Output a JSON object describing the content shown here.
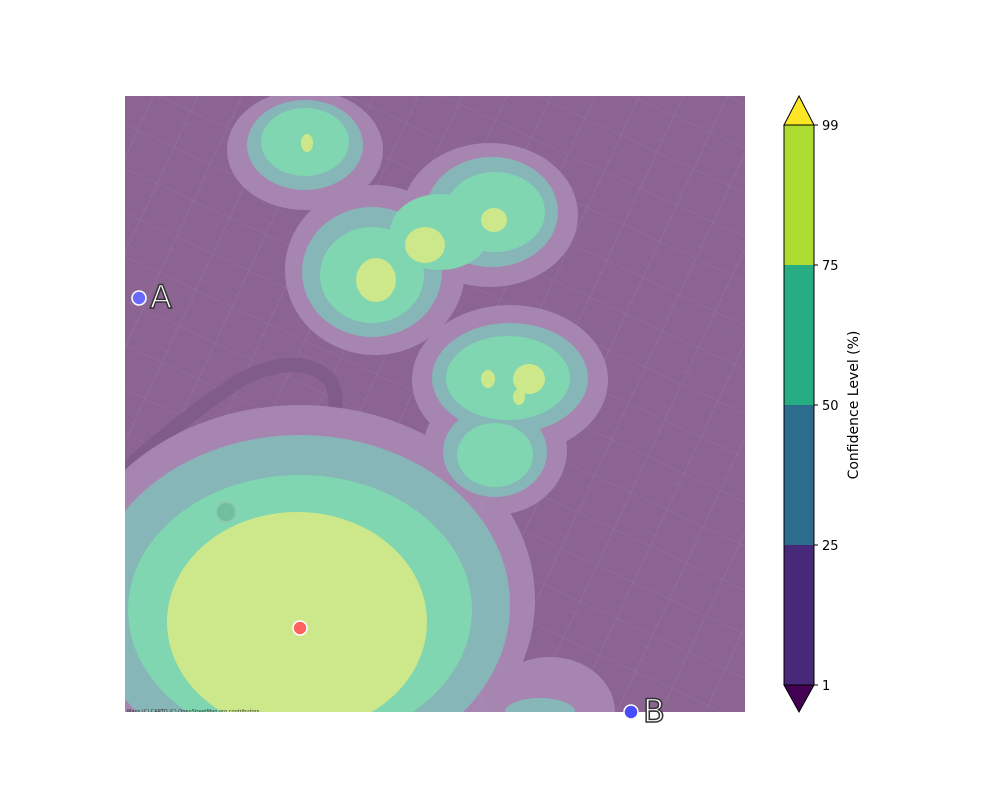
{
  "map": {
    "attribution": "Maps (C) CARTO (C) OpenStreetMap.org contributors",
    "markers": [
      {
        "id": "A",
        "label": "A",
        "color": "#6a6aff"
      },
      {
        "id": "B",
        "label": "B",
        "color": "#4a4aff"
      },
      {
        "id": "center",
        "label": "",
        "color": "#ff6060"
      }
    ]
  },
  "colorbar": {
    "label": "Confidence Level (%)",
    "ticks": [
      "1",
      "25",
      "50",
      "75",
      "99"
    ],
    "bands": [
      {
        "range": "1-25",
        "color": "#482878"
      },
      {
        "range": "25-50",
        "color": "#2c6d8e"
      },
      {
        "range": "50-75",
        "color": "#26ad81"
      },
      {
        "range": "75-99",
        "color": "#addc30"
      }
    ],
    "extend_min_color": "#440154",
    "extend_max_color": "#fde725"
  },
  "colors": {
    "background": "#8b6492",
    "level_1": "#a98ab4",
    "level_2": "#86b6b8",
    "level_3": "#7fd6b0",
    "level_4": "#cde88a"
  }
}
